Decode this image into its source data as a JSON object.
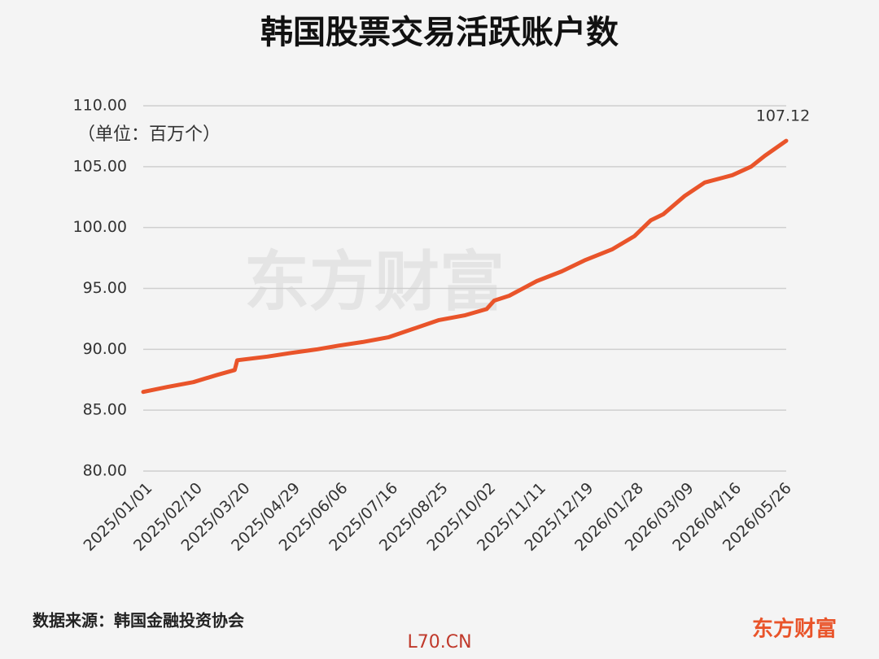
{
  "chart_data": {
    "type": "line",
    "title": "韩国股票交易活跃账户数",
    "unit_label": "（单位：百万个）",
    "source": "数据来源：韩国金融投资协会",
    "brand": "东方财富",
    "footer": "L70.CN",
    "x": [
      "2025/01/01",
      "2025/01/20",
      "2025/02/10",
      "2025/03/01",
      "2025/03/15",
      "2025/03/17",
      "2025/04/10",
      "2025/04/29",
      "2025/05/20",
      "2025/06/06",
      "2025/06/25",
      "2025/07/16",
      "2025/08/05",
      "2025/08/25",
      "2025/09/15",
      "2025/10/02",
      "2025/10/08",
      "2025/10/20",
      "2025/11/11",
      "2025/12/01",
      "2025/12/19",
      "2026/01/10",
      "2026/01/28",
      "2026/02/10",
      "2026/02/20",
      "2026/03/09",
      "2026/03/25",
      "2026/04/16",
      "2026/05/01",
      "2026/05/12",
      "2026/05/29"
    ],
    "series": [
      {
        "name": "活跃账户数",
        "color": "#e9542a",
        "values": [
          86.5,
          86.9,
          87.3,
          87.9,
          88.3,
          89.1,
          89.4,
          89.7,
          90.0,
          90.3,
          90.6,
          91.0,
          91.7,
          92.4,
          92.8,
          93.3,
          94.0,
          94.4,
          95.6,
          96.4,
          97.3,
          98.2,
          99.3,
          100.6,
          101.1,
          102.6,
          103.7,
          104.3,
          105.0,
          105.9,
          107.12
        ]
      }
    ],
    "ylim": [
      80,
      110
    ],
    "yticks": [
      {
        "value": 80,
        "label": "80.00"
      },
      {
        "value": 85,
        "label": "85.00"
      },
      {
        "value": 90,
        "label": "90.00"
      },
      {
        "value": 95,
        "label": "95.00"
      },
      {
        "value": 100,
        "label": "100.00"
      },
      {
        "value": 105,
        "label": "105.00"
      },
      {
        "value": 110,
        "label": "110.00"
      }
    ],
    "xticks": [
      "2025/01/01",
      "2025/02/10",
      "2025/03/20",
      "2025/04/29",
      "2025/06/06",
      "2025/07/16",
      "2025/08/25",
      "2025/10/02",
      "2025/11/11",
      "2025/12/19",
      "2026/01/28",
      "2026/03/09",
      "2026/04/16",
      "2026/05/26"
    ],
    "grid": true
  }
}
